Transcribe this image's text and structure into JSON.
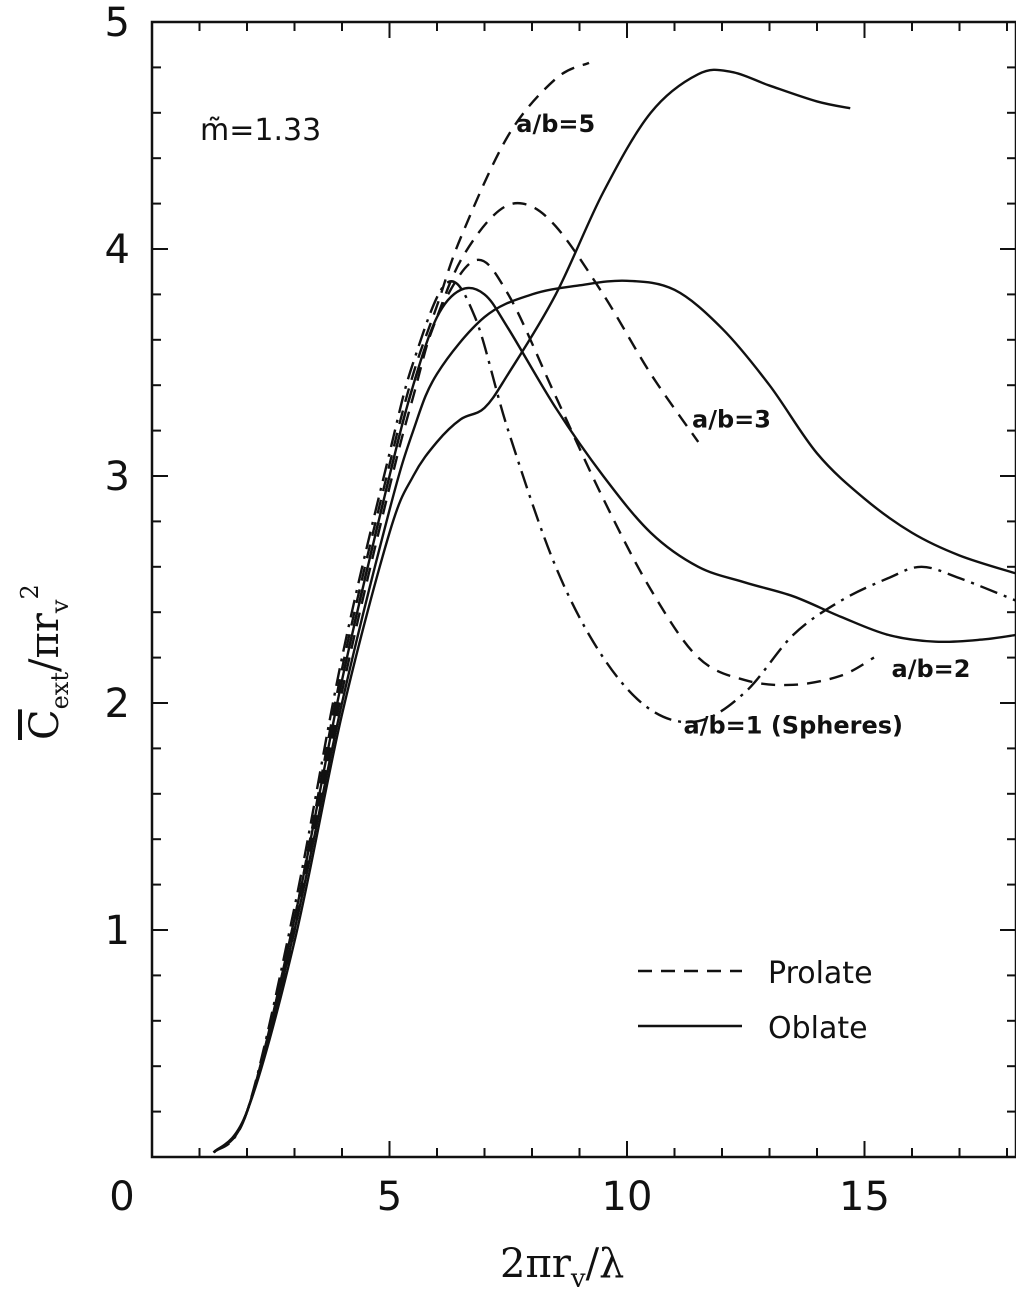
{
  "chart_data": {
    "type": "line",
    "annotation_main": "m̃=1.33",
    "xlabel": "2πr",
    "xlabel_sub": "v",
    "xlabel_tail": "/λ",
    "ylabel": "C",
    "ylabel_sub": "ext",
    "ylabel_mid": "/πr",
    "ylabel_sub2": "v",
    "ylabel_sup": "2",
    "xlim": [
      0,
      18.2
    ],
    "ylim": [
      0,
      5
    ],
    "xticks": [
      0,
      5,
      10,
      15
    ],
    "yticks": [
      0,
      1,
      2,
      3,
      4,
      5
    ],
    "legend": {
      "position": "bottom-right",
      "entries": [
        {
          "label": "Prolate",
          "style": "dashed"
        },
        {
          "label": "Oblate",
          "style": "solid"
        }
      ]
    },
    "labels": [
      {
        "text": "a/b=5",
        "x": 8.5,
        "y": 4.55
      },
      {
        "text": "a/b=3",
        "x": 12.2,
        "y": 3.25
      },
      {
        "text": "a/b=2",
        "x": 16.4,
        "y": 2.15
      },
      {
        "text": "a/b=1 (Spheres)",
        "x": 13.5,
        "y": 1.9
      }
    ],
    "series": [
      {
        "group": "sphere",
        "style": "dashdot",
        "points": [
          [
            1.3,
            0.02
          ],
          [
            2.0,
            0.2
          ],
          [
            3.0,
            1.1
          ],
          [
            4.0,
            2.2
          ],
          [
            5.0,
            3.1
          ],
          [
            5.5,
            3.5
          ],
          [
            6.2,
            3.85
          ],
          [
            6.8,
            3.7
          ],
          [
            7.5,
            3.2
          ],
          [
            8.5,
            2.6
          ],
          [
            9.5,
            2.2
          ],
          [
            10.5,
            1.97
          ],
          [
            11.5,
            1.92
          ],
          [
            12.5,
            2.05
          ],
          [
            13.5,
            2.3
          ],
          [
            14.5,
            2.45
          ],
          [
            15.5,
            2.55
          ],
          [
            16.2,
            2.6
          ],
          [
            17.0,
            2.55
          ],
          [
            18.2,
            2.45
          ]
        ]
      },
      {
        "group": "prolate",
        "style": "dashed",
        "points": [
          [
            1.3,
            0.02
          ],
          [
            2.0,
            0.2
          ],
          [
            3.0,
            1.05
          ],
          [
            4.0,
            2.15
          ],
          [
            5.0,
            3.05
          ],
          [
            5.5,
            3.45
          ],
          [
            6.0,
            3.75
          ],
          [
            6.5,
            4.05
          ],
          [
            7.5,
            4.5
          ],
          [
            8.5,
            4.75
          ],
          [
            9.2,
            4.82
          ]
        ]
      },
      {
        "group": "prolate",
        "style": "dashed",
        "points": [
          [
            1.3,
            0.02
          ],
          [
            2.0,
            0.2
          ],
          [
            3.0,
            1.0
          ],
          [
            4.0,
            2.1
          ],
          [
            5.0,
            3.0
          ],
          [
            5.5,
            3.4
          ],
          [
            6.0,
            3.7
          ],
          [
            6.5,
            3.95
          ],
          [
            7.2,
            4.15
          ],
          [
            7.8,
            4.2
          ],
          [
            8.5,
            4.1
          ],
          [
            9.5,
            3.8
          ],
          [
            10.5,
            3.45
          ],
          [
            11.5,
            3.15
          ]
        ]
      },
      {
        "group": "prolate",
        "style": "dashed",
        "points": [
          [
            1.3,
            0.02
          ],
          [
            2.0,
            0.2
          ],
          [
            3.0,
            1.0
          ],
          [
            4.0,
            2.05
          ],
          [
            5.0,
            2.95
          ],
          [
            5.5,
            3.35
          ],
          [
            6.0,
            3.7
          ],
          [
            6.8,
            3.95
          ],
          [
            7.5,
            3.8
          ],
          [
            8.5,
            3.35
          ],
          [
            9.5,
            2.9
          ],
          [
            10.5,
            2.5
          ],
          [
            11.5,
            2.2
          ],
          [
            12.5,
            2.1
          ],
          [
            13.5,
            2.08
          ],
          [
            14.5,
            2.12
          ],
          [
            15.2,
            2.2
          ]
        ]
      },
      {
        "group": "oblate",
        "style": "solid",
        "points": [
          [
            1.3,
            0.02
          ],
          [
            2.0,
            0.2
          ],
          [
            3.0,
            0.95
          ],
          [
            4.0,
            1.95
          ],
          [
            5.0,
            2.75
          ],
          [
            5.5,
            3.0
          ],
          [
            6.0,
            3.15
          ],
          [
            6.5,
            3.25
          ],
          [
            7.0,
            3.3
          ],
          [
            7.5,
            3.45
          ],
          [
            8.5,
            3.8
          ],
          [
            9.5,
            4.25
          ],
          [
            10.5,
            4.6
          ],
          [
            11.5,
            4.77
          ],
          [
            12.2,
            4.78
          ],
          [
            13.0,
            4.72
          ],
          [
            14.0,
            4.65
          ],
          [
            14.7,
            4.62
          ]
        ]
      },
      {
        "group": "oblate",
        "style": "solid",
        "points": [
          [
            1.3,
            0.02
          ],
          [
            2.0,
            0.2
          ],
          [
            3.0,
            1.0
          ],
          [
            4.0,
            2.0
          ],
          [
            5.0,
            2.85
          ],
          [
            5.5,
            3.2
          ],
          [
            6.0,
            3.45
          ],
          [
            7.0,
            3.7
          ],
          [
            8.0,
            3.8
          ],
          [
            9.0,
            3.84
          ],
          [
            10.0,
            3.86
          ],
          [
            11.0,
            3.82
          ],
          [
            12.0,
            3.65
          ],
          [
            13.0,
            3.4
          ],
          [
            14.0,
            3.1
          ],
          [
            15.0,
            2.9
          ],
          [
            16.0,
            2.75
          ],
          [
            17.0,
            2.65
          ],
          [
            18.2,
            2.57
          ]
        ]
      },
      {
        "group": "oblate",
        "style": "solid",
        "points": [
          [
            1.3,
            0.02
          ],
          [
            2.0,
            0.2
          ],
          [
            3.0,
            1.05
          ],
          [
            4.0,
            2.1
          ],
          [
            5.0,
            3.0
          ],
          [
            5.5,
            3.4
          ],
          [
            6.0,
            3.7
          ],
          [
            6.5,
            3.82
          ],
          [
            7.0,
            3.8
          ],
          [
            7.5,
            3.65
          ],
          [
            8.5,
            3.3
          ],
          [
            9.5,
            3.0
          ],
          [
            10.5,
            2.75
          ],
          [
            11.5,
            2.6
          ],
          [
            12.5,
            2.53
          ],
          [
            13.5,
            2.47
          ],
          [
            14.5,
            2.38
          ],
          [
            15.5,
            2.3
          ],
          [
            16.5,
            2.27
          ],
          [
            17.5,
            2.28
          ],
          [
            18.2,
            2.3
          ]
        ]
      }
    ]
  }
}
